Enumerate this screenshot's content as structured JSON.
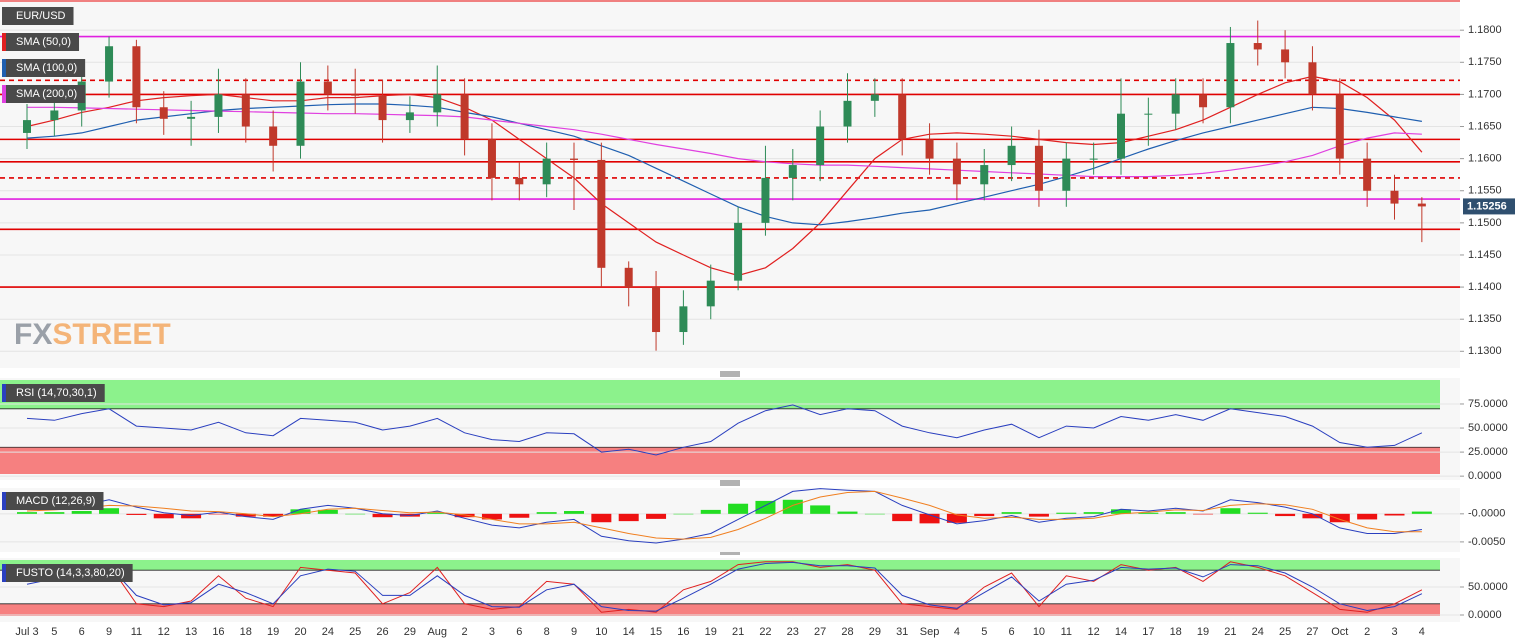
{
  "chart_data": [
    {
      "type": "candlestick",
      "symbol": "EUR/USD",
      "watermark": [
        "FX",
        "STREET"
      ],
      "categories": [
        "Jul 3",
        "5",
        "6",
        "9",
        "11",
        "12",
        "13",
        "16",
        "18",
        "19",
        "20",
        "24",
        "25",
        "26",
        "29",
        "Aug",
        "2",
        "3",
        "6",
        "8",
        "9",
        "10",
        "14",
        "15",
        "16",
        "19",
        "21",
        "22",
        "23",
        "27",
        "28",
        "29",
        "31",
        "Sep",
        "4",
        "5",
        "6",
        "10",
        "11",
        "12",
        "14",
        "17",
        "18",
        "19",
        "21",
        "24",
        "25",
        "27",
        "Oct",
        "2",
        "3",
        "4"
      ],
      "open": [
        1.164,
        1.166,
        1.1675,
        1.172,
        1.1775,
        1.168,
        1.1662,
        1.1665,
        1.17,
        1.165,
        1.162,
        1.172,
        1.17,
        1.1698,
        1.166,
        1.1672,
        1.17,
        1.163,
        1.157,
        1.156,
        1.16,
        1.1598,
        1.143,
        1.14,
        1.133,
        1.137,
        1.141,
        1.15,
        1.157,
        1.159,
        1.165,
        1.169,
        1.17,
        1.163,
        1.16,
        1.156,
        1.159,
        1.162,
        1.155,
        1.16,
        1.16,
        1.167,
        1.167,
        1.17,
        1.168,
        1.178,
        1.177,
        1.175,
        1.17,
        1.16,
        1.155,
        1.153
      ],
      "high": [
        1.1685,
        1.17,
        1.1745,
        1.179,
        1.1785,
        1.1705,
        1.169,
        1.174,
        1.1725,
        1.1675,
        1.175,
        1.1745,
        1.174,
        1.1723,
        1.1697,
        1.1745,
        1.1725,
        1.1655,
        1.1595,
        1.1625,
        1.1625,
        1.1625,
        1.144,
        1.1425,
        1.1395,
        1.1435,
        1.1525,
        1.162,
        1.1615,
        1.1675,
        1.1733,
        1.1725,
        1.1725,
        1.1655,
        1.1625,
        1.1615,
        1.165,
        1.1645,
        1.1625,
        1.1625,
        1.1725,
        1.1695,
        1.1725,
        1.1725,
        1.1805,
        1.1815,
        1.18,
        1.1775,
        1.1725,
        1.1625,
        1.1575,
        1.154
      ],
      "low": [
        1.1615,
        1.1635,
        1.165,
        1.1695,
        1.1655,
        1.1637,
        1.162,
        1.164,
        1.1625,
        1.158,
        1.16,
        1.1675,
        1.167,
        1.1625,
        1.164,
        1.165,
        1.1605,
        1.1535,
        1.1535,
        1.154,
        1.152,
        1.14,
        1.137,
        1.1301,
        1.131,
        1.135,
        1.1395,
        1.148,
        1.1535,
        1.1565,
        1.1625,
        1.1665,
        1.1605,
        1.1575,
        1.1535,
        1.1535,
        1.1565,
        1.1525,
        1.1525,
        1.1575,
        1.1575,
        1.162,
        1.1645,
        1.1655,
        1.1655,
        1.1745,
        1.1725,
        1.1675,
        1.1575,
        1.1525,
        1.1505,
        1.147
      ],
      "close": [
        1.166,
        1.1675,
        1.172,
        1.1775,
        1.168,
        1.1662,
        1.1665,
        1.17,
        1.165,
        1.162,
        1.172,
        1.17,
        1.1698,
        1.166,
        1.1672,
        1.17,
        1.163,
        1.157,
        1.156,
        1.16,
        1.1598,
        1.143,
        1.14,
        1.133,
        1.137,
        1.141,
        1.15,
        1.157,
        1.159,
        1.165,
        1.169,
        1.17,
        1.163,
        1.16,
        1.156,
        1.159,
        1.162,
        1.155,
        1.16,
        1.16,
        1.167,
        1.167,
        1.17,
        1.168,
        1.178,
        1.177,
        1.175,
        1.17,
        1.16,
        1.155,
        1.153,
        1.15256
      ],
      "up_color": "#2e8b57",
      "down_color": "#c0392b",
      "series": [
        {
          "name": "SMA (50,0)",
          "color": "#e02020",
          "values": [
            1.165,
            1.166,
            1.1672,
            1.168,
            1.169,
            1.1695,
            1.1698,
            1.17,
            1.1695,
            1.169,
            1.169,
            1.1695,
            1.1695,
            1.1698,
            1.17,
            1.1695,
            1.168,
            1.166,
            1.163,
            1.16,
            1.157,
            1.153,
            1.15,
            1.147,
            1.145,
            1.143,
            1.1418,
            1.143,
            1.146,
            1.15,
            1.155,
            1.16,
            1.163,
            1.1638,
            1.164,
            1.1638,
            1.1635,
            1.163,
            1.1625,
            1.1622,
            1.1625,
            1.1635,
            1.1645,
            1.166,
            1.168,
            1.17,
            1.1718,
            1.1728,
            1.172,
            1.1695,
            1.166,
            1.161
          ]
        },
        {
          "name": "SMA (100,0)",
          "color": "#1f5fb0",
          "values": [
            1.1632,
            1.1635,
            1.164,
            1.165,
            1.166,
            1.1665,
            1.167,
            1.1675,
            1.1678,
            1.168,
            1.1682,
            1.1684,
            1.1685,
            1.1685,
            1.1683,
            1.168,
            1.1672,
            1.1665,
            1.1655,
            1.1645,
            1.1635,
            1.162,
            1.1605,
            1.1585,
            1.1565,
            1.1545,
            1.1525,
            1.151,
            1.15,
            1.1497,
            1.1502,
            1.1508,
            1.1515,
            1.152,
            1.153,
            1.154,
            1.155,
            1.156,
            1.1572,
            1.1585,
            1.16,
            1.1615,
            1.1628,
            1.164,
            1.165,
            1.166,
            1.167,
            1.168,
            1.1678,
            1.1672,
            1.1665,
            1.1658
          ]
        },
        {
          "name": "SMA (200,0)",
          "color": "#e040e0",
          "values": [
            1.168,
            1.168,
            1.1679,
            1.1678,
            1.1677,
            1.1676,
            1.1675,
            1.1674,
            1.1673,
            1.1672,
            1.1671,
            1.167,
            1.167,
            1.1669,
            1.1668,
            1.1667,
            1.1665,
            1.166,
            1.1655,
            1.165,
            1.1645,
            1.1638,
            1.163,
            1.1622,
            1.1615,
            1.1608,
            1.16,
            1.1595,
            1.1592,
            1.159,
            1.159,
            1.1588,
            1.1586,
            1.1584,
            1.1582,
            1.158,
            1.1578,
            1.1576,
            1.1574,
            1.1572,
            1.1572,
            1.1572,
            1.1574,
            1.1577,
            1.1582,
            1.1588,
            1.1595,
            1.1605,
            1.162,
            1.1632,
            1.164,
            1.1638
          ]
        }
      ],
      "levels": [
        {
          "value": 1.179,
          "color": "#e020e0",
          "style": "solid"
        },
        {
          "value": 1.1722,
          "color": "#e00000",
          "style": "dashed"
        },
        {
          "value": 1.17,
          "color": "#e00000",
          "style": "solid"
        },
        {
          "value": 1.163,
          "color": "#e00000",
          "style": "solid"
        },
        {
          "value": 1.1595,
          "color": "#e00000",
          "style": "solid"
        },
        {
          "value": 1.157,
          "color": "#e00000",
          "style": "dashed"
        },
        {
          "value": 1.1537,
          "color": "#e020e0",
          "style": "solid"
        },
        {
          "value": 1.149,
          "color": "#e00000",
          "style": "solid"
        },
        {
          "value": 1.14,
          "color": "#e00000",
          "style": "solid"
        }
      ],
      "last_price": 1.15256,
      "ylim": [
        1.1274,
        1.1847
      ],
      "yticks": [
        {
          "value": 1.13,
          "label": "1.1300"
        },
        {
          "value": 1.135,
          "label": "1.1350"
        },
        {
          "value": 1.14,
          "label": "1.1400"
        },
        {
          "value": 1.145,
          "label": "1.1450"
        },
        {
          "value": 1.15,
          "label": "1.1500"
        },
        {
          "value": 1.155,
          "label": "1.1550"
        },
        {
          "value": 1.16,
          "label": "1.1600"
        },
        {
          "value": 1.165,
          "label": "1.1650"
        },
        {
          "value": 1.17,
          "label": "1.1700"
        },
        {
          "value": 1.175,
          "label": "1.1750"
        },
        {
          "value": 1.18,
          "label": "1.1800"
        }
      ],
      "grid": true
    },
    {
      "type": "oscillator",
      "title": "RSI (14,70,30,1)",
      "upper": 70,
      "lower": 30,
      "series": [
        {
          "color": "#2a3fbf",
          "values": [
            60,
            58,
            65,
            70,
            52,
            50,
            48,
            56,
            45,
            42,
            60,
            58,
            56,
            48,
            52,
            60,
            45,
            38,
            36,
            45,
            44,
            25,
            28,
            22,
            30,
            36,
            55,
            68,
            74,
            64,
            70,
            68,
            52,
            45,
            40,
            48,
            54,
            40,
            52,
            50,
            62,
            58,
            64,
            58,
            70,
            66,
            62,
            52,
            35,
            30,
            32,
            45
          ]
        }
      ],
      "ylim": [
        -4,
        102
      ],
      "yticks": [
        {
          "value": 0,
          "label": "0.0000"
        },
        {
          "value": 25,
          "label": "25.0000"
        },
        {
          "value": 50,
          "label": "50.0000"
        },
        {
          "value": 75,
          "label": "75.0000"
        }
      ]
    },
    {
      "type": "macd",
      "title": "MACD (12,26,9)",
      "up_color": "#22dd22",
      "down_color": "#ee1111",
      "histogram": [
        0.0003,
        0.0003,
        0.0005,
        0.001,
        -0.0002,
        -0.0008,
        -0.0008,
        -0.0001,
        -0.0005,
        -0.0005,
        0.0008,
        0.0007,
        0.0,
        -0.0006,
        -0.0005,
        0.0002,
        -0.0006,
        -0.001,
        -0.0007,
        0.0003,
        0.0005,
        -0.0015,
        -0.0013,
        -0.0009,
        0.0,
        0.0007,
        0.0018,
        0.0023,
        0.0025,
        0.0015,
        0.0004,
        0.0,
        -0.0013,
        -0.0017,
        -0.0016,
        -0.0004,
        0.0003,
        -0.0005,
        0.0002,
        0.0003,
        0.0008,
        0.0002,
        0.0003,
        -0.0001,
        0.001,
        0.0002,
        -0.0004,
        -0.0008,
        -0.0015,
        -0.001,
        -0.0003,
        0.0004
      ],
      "series": [
        {
          "color": "#2a3fbf",
          "values": [
            0.0008,
            0.001,
            0.0015,
            0.0025,
            0.0012,
            0.0002,
            -0.0003,
            0.0003,
            -0.0005,
            -0.001,
            0.0008,
            0.0015,
            0.001,
            0.0,
            -0.0003,
            0.0005,
            -0.0008,
            -0.002,
            -0.0025,
            -0.0015,
            -0.001,
            -0.004,
            -0.0048,
            -0.0052,
            -0.0045,
            -0.0035,
            -0.001,
            0.0015,
            0.004,
            0.0045,
            0.0042,
            0.004,
            0.0015,
            -0.0002,
            -0.0018,
            -0.0012,
            -0.0003,
            -0.0015,
            -0.0008,
            -0.0005,
            0.0008,
            0.0005,
            0.001,
            0.0005,
            0.0025,
            0.002,
            0.0012,
            0.0,
            -0.0025,
            -0.0035,
            -0.0035,
            -0.0028
          ]
        },
        {
          "color": "#f07f20",
          "values": [
            0.0005,
            0.0007,
            0.001,
            0.0015,
            0.0014,
            0.001,
            0.0005,
            0.0004,
            0.0,
            -0.0005,
            0.0,
            0.0008,
            0.001,
            0.0006,
            0.0002,
            0.0003,
            -0.0002,
            -0.001,
            -0.0018,
            -0.0018,
            -0.0015,
            -0.0025,
            -0.0035,
            -0.0043,
            -0.0045,
            -0.0042,
            -0.0028,
            -0.0008,
            0.0015,
            0.003,
            0.0038,
            0.004,
            0.0028,
            0.0015,
            -0.0002,
            -0.0008,
            -0.0006,
            -0.001,
            -0.001,
            -0.0008,
            0.0,
            0.0003,
            0.0007,
            0.0006,
            0.0015,
            0.0018,
            0.0016,
            0.0008,
            -0.001,
            -0.0025,
            -0.0032,
            -0.0032
          ]
        }
      ],
      "ylim": [
        -0.0068,
        0.0046
      ],
      "yticks": [
        {
          "value": -0.005,
          "label": "-0.0050"
        },
        {
          "value": 0,
          "label": "-0.0000"
        }
      ]
    },
    {
      "type": "oscillator",
      "title": "FUSTO (14,3,3,80,20)",
      "upper": 80,
      "lower": 20,
      "series": [
        {
          "color": "#e02020",
          "values": [
            60,
            70,
            85,
            90,
            20,
            15,
            25,
            70,
            30,
            15,
            85,
            80,
            75,
            20,
            40,
            85,
            20,
            10,
            15,
            60,
            55,
            5,
            10,
            5,
            45,
            60,
            90,
            95,
            95,
            85,
            90,
            80,
            20,
            15,
            10,
            50,
            75,
            15,
            70,
            60,
            90,
            80,
            85,
            60,
            95,
            85,
            70,
            40,
            10,
            5,
            20,
            45
          ]
        },
        {
          "color": "#2a3fbf",
          "values": [
            55,
            65,
            80,
            88,
            35,
            18,
            22,
            55,
            40,
            20,
            70,
            82,
            78,
            35,
            35,
            70,
            35,
            15,
            14,
            45,
            55,
            15,
            8,
            7,
            30,
            55,
            82,
            92,
            94,
            88,
            88,
            84,
            35,
            18,
            12,
            40,
            68,
            25,
            55,
            62,
            85,
            82,
            84,
            68,
            90,
            88,
            75,
            50,
            20,
            8,
            15,
            38
          ]
        }
      ],
      "ylim": [
        -12.5,
        101.8
      ],
      "yticks": [
        {
          "value": 0,
          "label": "0.0000"
        },
        {
          "value": 50,
          "label": "50.0000"
        }
      ]
    }
  ]
}
